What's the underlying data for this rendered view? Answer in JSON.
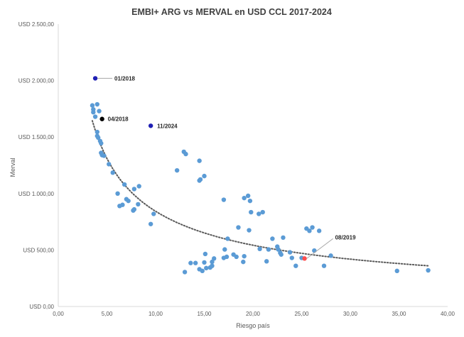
{
  "chart_data": {
    "type": "scatter",
    "title": "EMBI+ ARG vs MERVAL en USD CCL 2017-2024",
    "xlabel": "Riesgo país",
    "ylabel": "Merval",
    "xlim": [
      0,
      40
    ],
    "ylim": [
      0,
      2500
    ],
    "x_ticks": [
      0,
      5,
      10,
      15,
      20,
      25,
      30,
      35,
      40
    ],
    "x_tick_labels": [
      "0,00",
      "5,00",
      "10,00",
      "15,00",
      "20,00",
      "25,00",
      "30,00",
      "35,00",
      "40,00"
    ],
    "y_ticks": [
      0,
      500,
      1000,
      1500,
      2000,
      2500
    ],
    "y_tick_labels": [
      "USD 0,00",
      "USD 500,00",
      "USD 1.000,00",
      "USD 1.500,00",
      "USD 2.000,00",
      "USD 2.500,00"
    ],
    "grid": false,
    "trendline": {
      "type": "power",
      "style": "dotted",
      "color": "#595959",
      "x_range": [
        3.5,
        38
      ]
    },
    "colors": {
      "points": "#5b9bd5",
      "highlight_dark_blue": "#1f1fb4",
      "highlight_black": "#000000",
      "highlight_red": "#ff4d4d"
    },
    "series": [
      {
        "color": "#5b9bd5",
        "points": [
          [
            3.5,
            1780
          ],
          [
            3.6,
            1745
          ],
          [
            3.6,
            1720
          ],
          [
            3.8,
            1680
          ],
          [
            4.0,
            1790
          ],
          [
            4.2,
            1730
          ],
          [
            4.0,
            1545
          ],
          [
            4.0,
            1510
          ],
          [
            4.1,
            1495
          ],
          [
            4.3,
            1465
          ],
          [
            4.4,
            1445
          ],
          [
            4.4,
            1360
          ],
          [
            4.5,
            1340
          ],
          [
            4.7,
            1335
          ],
          [
            5.2,
            1260
          ],
          [
            5.6,
            1185
          ],
          [
            6.1,
            1000
          ],
          [
            6.3,
            890
          ],
          [
            6.6,
            900
          ],
          [
            6.8,
            1080
          ],
          [
            7.0,
            950
          ],
          [
            7.2,
            935
          ],
          [
            7.7,
            850
          ],
          [
            7.8,
            860
          ],
          [
            7.8,
            1040
          ],
          [
            8.2,
            905
          ],
          [
            8.3,
            1065
          ],
          [
            9.5,
            730
          ],
          [
            9.8,
            820
          ],
          [
            12.2,
            1205
          ],
          [
            12.9,
            1370
          ],
          [
            13.1,
            1350
          ],
          [
            14.5,
            1290
          ],
          [
            14.5,
            1115
          ],
          [
            14.6,
            1125
          ],
          [
            15.0,
            1155
          ],
          [
            17.0,
            945
          ],
          [
            19.1,
            960
          ],
          [
            19.5,
            980
          ],
          [
            19.7,
            935
          ],
          [
            19.8,
            835
          ],
          [
            20.6,
            820
          ],
          [
            21.0,
            835
          ],
          [
            18.5,
            700
          ],
          [
            17.4,
            600
          ],
          [
            19.6,
            675
          ],
          [
            13.0,
            305
          ],
          [
            13.6,
            385
          ],
          [
            14.1,
            385
          ],
          [
            14.5,
            330
          ],
          [
            14.8,
            315
          ],
          [
            15.0,
            390
          ],
          [
            15.2,
            340
          ],
          [
            15.1,
            465
          ],
          [
            15.6,
            345
          ],
          [
            15.8,
            360
          ],
          [
            15.8,
            395
          ],
          [
            16.0,
            425
          ],
          [
            17.0,
            430
          ],
          [
            17.1,
            505
          ],
          [
            17.3,
            440
          ],
          [
            18.0,
            460
          ],
          [
            18.3,
            440
          ],
          [
            19.0,
            395
          ],
          [
            19.1,
            445
          ],
          [
            20.7,
            510
          ],
          [
            21.4,
            400
          ],
          [
            21.6,
            505
          ],
          [
            22.0,
            600
          ],
          [
            22.5,
            530
          ],
          [
            22.6,
            505
          ],
          [
            22.8,
            475
          ],
          [
            22.9,
            460
          ],
          [
            23.1,
            610
          ],
          [
            23.8,
            480
          ],
          [
            24.0,
            430
          ],
          [
            24.4,
            360
          ],
          [
            25.0,
            430
          ],
          [
            25.5,
            690
          ],
          [
            25.8,
            670
          ],
          [
            26.1,
            700
          ],
          [
            26.3,
            495
          ],
          [
            26.8,
            670
          ],
          [
            27.3,
            360
          ],
          [
            28.0,
            450
          ],
          [
            34.8,
            315
          ],
          [
            38.0,
            320
          ]
        ]
      },
      {
        "name": "01/2018",
        "color": "#1f1fb4",
        "points": [
          [
            3.8,
            2020
          ]
        ]
      },
      {
        "name": "04/2018",
        "color": "#000000",
        "points": [
          [
            4.5,
            1660
          ]
        ]
      },
      {
        "name": "11/2024",
        "color": "#1f1fb4",
        "points": [
          [
            9.5,
            1600
          ]
        ]
      },
      {
        "name": "08/2019",
        "color": "#ff4d4d",
        "points": [
          [
            25.3,
            425
          ]
        ]
      }
    ],
    "annotations": [
      {
        "label": "01/2018",
        "x": 3.8,
        "y": 2020
      },
      {
        "label": "04/2018",
        "x": 4.5,
        "y": 1660
      },
      {
        "label": "11/2024",
        "x": 9.5,
        "y": 1600
      },
      {
        "label": "08/2019",
        "x": 25.3,
        "y": 425
      }
    ]
  }
}
